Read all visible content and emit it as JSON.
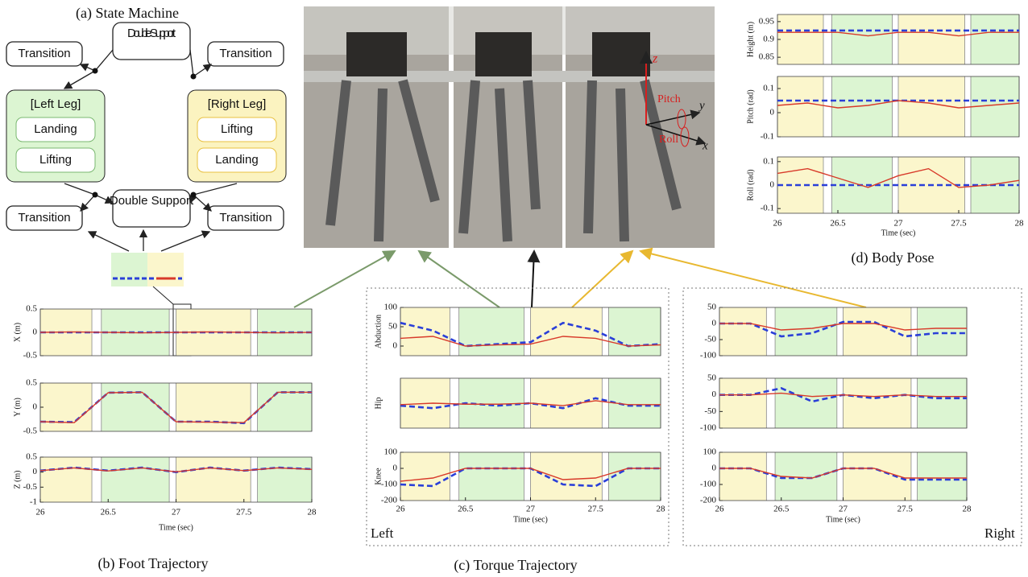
{
  "state_machine": {
    "title": "(a) State Machine",
    "nodes": [
      "Transition",
      "Double Support",
      "Transition",
      "[Left Leg]",
      "Landing",
      "Lifting",
      "[Right Leg]",
      "Lifting",
      "Landing",
      "Double Support",
      "Transition",
      "Transition"
    ]
  },
  "photo_labels": {
    "z": "z",
    "y": "y",
    "x": "x",
    "pitch": "Pitch",
    "roll": "Roll"
  },
  "phases": [
    {
      "start": 26,
      "end": 26.38,
      "color": "#fbf6cc"
    },
    {
      "start": 26.45,
      "end": 26.95,
      "color": "#dcf5d2"
    },
    {
      "start": 27.0,
      "end": 27.55,
      "color": "#fbf6cc"
    },
    {
      "start": 27.6,
      "end": 28,
      "color": "#dcf5d2"
    }
  ],
  "foot": {
    "caption": "(b) Foot Trajectory",
    "xlabel": "Time (sec)",
    "xlim": [
      26,
      28
    ],
    "xticks": [
      26,
      26.5,
      27,
      27.5,
      28
    ],
    "x": [
      26,
      26.25,
      26.5,
      26.75,
      27,
      27.25,
      27.5,
      27.75,
      28
    ],
    "panels": [
      {
        "ylabel": "X (m)",
        "ylim": [
          -0.5,
          0.5
        ],
        "yticks": [
          0.5,
          0,
          -0.5
        ],
        "series": [
          {
            "color": "#2a3fd8",
            "values": [
              0,
              0,
              0,
              0,
              0,
              0,
              0,
              0,
              0
            ]
          },
          {
            "color": "#d83a2a",
            "values": [
              0,
              0.01,
              0,
              -0.01,
              0,
              0.01,
              0,
              -0.01,
              0
            ]
          }
        ]
      },
      {
        "ylabel": "Y (m)",
        "ylim": [
          -0.5,
          0.5
        ],
        "yticks": [
          0.5,
          0,
          -0.5
        ],
        "series": [
          {
            "color": "#2a3fd8",
            "values": [
              -0.3,
              -0.31,
              0.3,
              0.31,
              -0.3,
              -0.3,
              -0.33,
              0.31,
              0.31
            ]
          },
          {
            "color": "#d83a2a",
            "values": [
              -0.3,
              -0.32,
              0.3,
              0.31,
              -0.3,
              -0.31,
              -0.32,
              0.31,
              0.31
            ]
          }
        ]
      },
      {
        "ylabel": "Z (m)",
        "ylim": [
          -1,
          0.5
        ],
        "yticks": [
          0.5,
          0,
          -0.5,
          -1
        ],
        "series": [
          {
            "color": "#2a3fd8",
            "values": [
              0.05,
              0.15,
              0.05,
              0.15,
              0,
              0.15,
              0.05,
              0.15,
              0.1
            ]
          },
          {
            "color": "#d83a2a",
            "values": [
              0.05,
              0.14,
              0.04,
              0.14,
              0.01,
              0.14,
              0.05,
              0.14,
              0.09
            ]
          }
        ]
      }
    ]
  },
  "torque": {
    "caption": "(c) Torque Trajectory",
    "left": "Left",
    "right": "Right",
    "left_plot": {
      "xlabel": "Time (sec)",
      "xlim": [
        26,
        28
      ],
      "xticks": [
        26,
        26.5,
        27,
        27.5,
        28
      ],
      "x": [
        26,
        26.25,
        26.5,
        26.75,
        27,
        27.25,
        27.5,
        27.75,
        28
      ],
      "panels": [
        {
          "ylabel": "Abduction",
          "ylim": [
            -25,
            100
          ],
          "yticks": [
            100,
            50,
            0
          ],
          "series": [
            {
              "color": "#2a3fd8",
              "values": [
                60,
                40,
                0,
                5,
                10,
                60,
                40,
                0,
                5
              ]
            },
            {
              "color": "#d83a2a",
              "values": [
                20,
                25,
                0,
                3,
                5,
                25,
                20,
                0,
                3
              ]
            }
          ]
        },
        {
          "ylabel": "Hip",
          "ylim": [
            -50,
            50
          ],
          "yticks": [],
          "series": [
            {
              "color": "#2a3fd8",
              "values": [
                -5,
                -10,
                0,
                -5,
                0,
                -10,
                10,
                -5,
                -5
              ]
            },
            {
              "color": "#d83a2a",
              "values": [
                -3,
                0,
                -2,
                -2,
                0,
                -5,
                5,
                -3,
                -3
              ]
            }
          ]
        },
        {
          "ylabel": "Knee",
          "ylim": [
            -200,
            100
          ],
          "yticks": [
            100,
            0,
            -100,
            -200
          ],
          "series": [
            {
              "color": "#2a3fd8",
              "values": [
                -100,
                -110,
                0,
                0,
                0,
                -100,
                -110,
                0,
                0
              ]
            },
            {
              "color": "#d83a2a",
              "values": [
                -80,
                -60,
                0,
                0,
                0,
                -70,
                -60,
                0,
                0
              ]
            }
          ]
        }
      ]
    },
    "right_plot": {
      "xlabel": "Time (sec)",
      "xlim": [
        26,
        28
      ],
      "xticks": [
        26,
        26.5,
        27,
        27.5,
        28
      ],
      "x": [
        26,
        26.25,
        26.5,
        26.75,
        27,
        27.25,
        27.5,
        27.75,
        28
      ],
      "panels": [
        {
          "ylim": [
            -100,
            50
          ],
          "yticks": [
            50,
            0,
            -50,
            -100
          ],
          "series": [
            {
              "color": "#2a3fd8",
              "values": [
                0,
                0,
                -40,
                -30,
                5,
                5,
                -40,
                -30,
                -30
              ]
            },
            {
              "color": "#d83a2a",
              "values": [
                0,
                0,
                -20,
                -15,
                0,
                0,
                -20,
                -15,
                -15
              ]
            }
          ]
        },
        {
          "ylim": [
            -100,
            50
          ],
          "yticks": [
            50,
            0,
            -50,
            -100
          ],
          "series": [
            {
              "color": "#2a3fd8",
              "values": [
                0,
                0,
                20,
                -20,
                0,
                -10,
                0,
                -10,
                -10
              ]
            },
            {
              "color": "#d83a2a",
              "values": [
                0,
                0,
                5,
                -5,
                0,
                -5,
                0,
                -5,
                -5
              ]
            }
          ]
        },
        {
          "ylim": [
            -200,
            100
          ],
          "yticks": [
            100,
            0,
            -100,
            -200
          ],
          "series": [
            {
              "color": "#2a3fd8",
              "values": [
                0,
                0,
                -60,
                -60,
                0,
                0,
                -70,
                -70,
                -70
              ]
            },
            {
              "color": "#d83a2a",
              "values": [
                0,
                0,
                -50,
                -60,
                0,
                0,
                -60,
                -60,
                -60
              ]
            }
          ]
        }
      ]
    }
  },
  "body": {
    "caption": "(d) Body Pose",
    "xlabel": "Time (sec)",
    "xlim": [
      26,
      28
    ],
    "xticks": [
      26,
      26.5,
      27,
      27.5,
      28
    ],
    "x": [
      26,
      26.25,
      26.5,
      26.75,
      27,
      27.25,
      27.5,
      27.75,
      28
    ],
    "panels": [
      {
        "ylabel": "Height (m)",
        "ylim": [
          0.83,
          0.97
        ],
        "yticks": [
          0.95,
          0.9,
          0.85
        ],
        "series": [
          {
            "color": "#2a3fd8",
            "values": [
              0.925,
              0.925,
              0.925,
              0.925,
              0.925,
              0.925,
              0.925,
              0.925,
              0.925
            ]
          },
          {
            "color": "#d83a2a",
            "values": [
              0.92,
              0.92,
              0.92,
              0.91,
              0.92,
              0.92,
              0.91,
              0.92,
              0.92
            ]
          }
        ]
      },
      {
        "ylabel": "Pitch (rad)",
        "ylim": [
          -0.1,
          0.15
        ],
        "yticks": [
          0.1,
          0,
          -0.1
        ],
        "series": [
          {
            "color": "#2a3fd8",
            "values": [
              0.05,
              0.05,
              0.05,
              0.05,
              0.05,
              0.05,
              0.05,
              0.05,
              0.05
            ]
          },
          {
            "color": "#d83a2a",
            "values": [
              0.03,
              0.04,
              0.02,
              0.03,
              0.05,
              0.04,
              0.02,
              0.03,
              0.04
            ]
          }
        ]
      },
      {
        "ylabel": "Roll (rad)",
        "ylim": [
          -0.12,
          0.12
        ],
        "yticks": [
          0.1,
          0,
          -0.1
        ],
        "series": [
          {
            "color": "#2a3fd8",
            "values": [
              0,
              0,
              0,
              0,
              0,
              0,
              0,
              0,
              0
            ]
          },
          {
            "color": "#d83a2a",
            "values": [
              0.05,
              0.07,
              0.03,
              -0.01,
              0.04,
              0.07,
              -0.01,
              0,
              0.02
            ]
          }
        ]
      }
    ]
  }
}
